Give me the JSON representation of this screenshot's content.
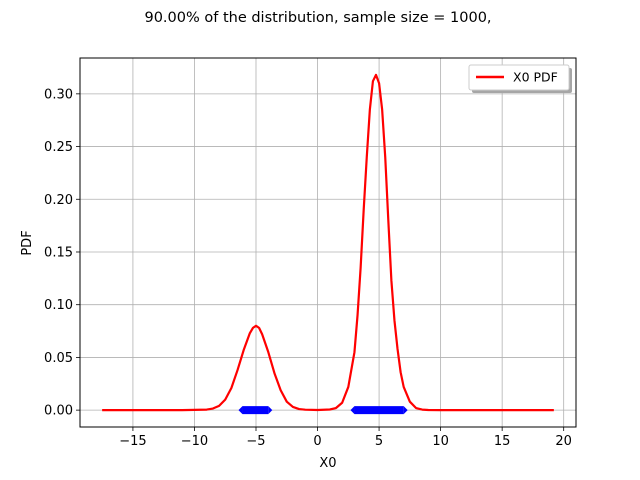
{
  "chart_data": {
    "type": "line",
    "title": "90.00% of the distribution, sample size = 1000,",
    "xlabel": "X0",
    "ylabel": "PDF",
    "xlim": [
      -19.3,
      21.0
    ],
    "ylim": [
      -0.016,
      0.334
    ],
    "grid": true,
    "legend_position": "top-right",
    "xticks": [
      -15,
      -10,
      -5,
      0,
      5,
      10,
      15,
      20
    ],
    "xtick_labels": [
      "−15",
      "−10",
      "−5",
      "0",
      "5",
      "10",
      "15",
      "20"
    ],
    "yticks": [
      0.0,
      0.05,
      0.1,
      0.15,
      0.2,
      0.25,
      0.3
    ],
    "ytick_labels": [
      "0.00",
      "0.05",
      "0.10",
      "0.15",
      "0.20",
      "0.25",
      "0.30"
    ],
    "series": [
      {
        "name": "X0 PDF",
        "color": "#ff0000",
        "x": [
          -17.5,
          -14.0,
          -11.0,
          -9.0,
          -8.5,
          -8.0,
          -7.5,
          -7.0,
          -6.5,
          -6.0,
          -5.5,
          -5.25,
          -5.0,
          -4.75,
          -4.5,
          -4.0,
          -3.5,
          -3.0,
          -2.5,
          -2.0,
          -1.5,
          -1.0,
          0.0,
          1.0,
          1.5,
          2.0,
          2.5,
          3.0,
          3.25,
          3.5,
          3.75,
          4.0,
          4.25,
          4.5,
          4.75,
          5.0,
          5.25,
          5.5,
          5.75,
          6.0,
          6.25,
          6.5,
          6.75,
          7.0,
          7.5,
          8.0,
          8.5,
          9.0,
          10.0,
          12.0,
          19.2
        ],
        "y": [
          0.0,
          0.0,
          0.0,
          0.0005,
          0.0015,
          0.004,
          0.01,
          0.021,
          0.038,
          0.057,
          0.073,
          0.078,
          0.08,
          0.078,
          0.072,
          0.055,
          0.035,
          0.019,
          0.008,
          0.003,
          0.001,
          0.0004,
          0.0001,
          0.0006,
          0.002,
          0.007,
          0.022,
          0.055,
          0.09,
          0.135,
          0.19,
          0.24,
          0.285,
          0.312,
          0.318,
          0.31,
          0.285,
          0.24,
          0.18,
          0.123,
          0.085,
          0.058,
          0.036,
          0.022,
          0.008,
          0.002,
          0.0005,
          0.0001,
          0.0,
          0.0,
          0.0
        ]
      }
    ],
    "intervals": [
      {
        "color": "#0000ff",
        "from": -6.1,
        "to": -4.0,
        "y": 0.0
      },
      {
        "color": "#0000ff",
        "from": 3.0,
        "to": 7.0,
        "y": 0.0
      }
    ]
  }
}
